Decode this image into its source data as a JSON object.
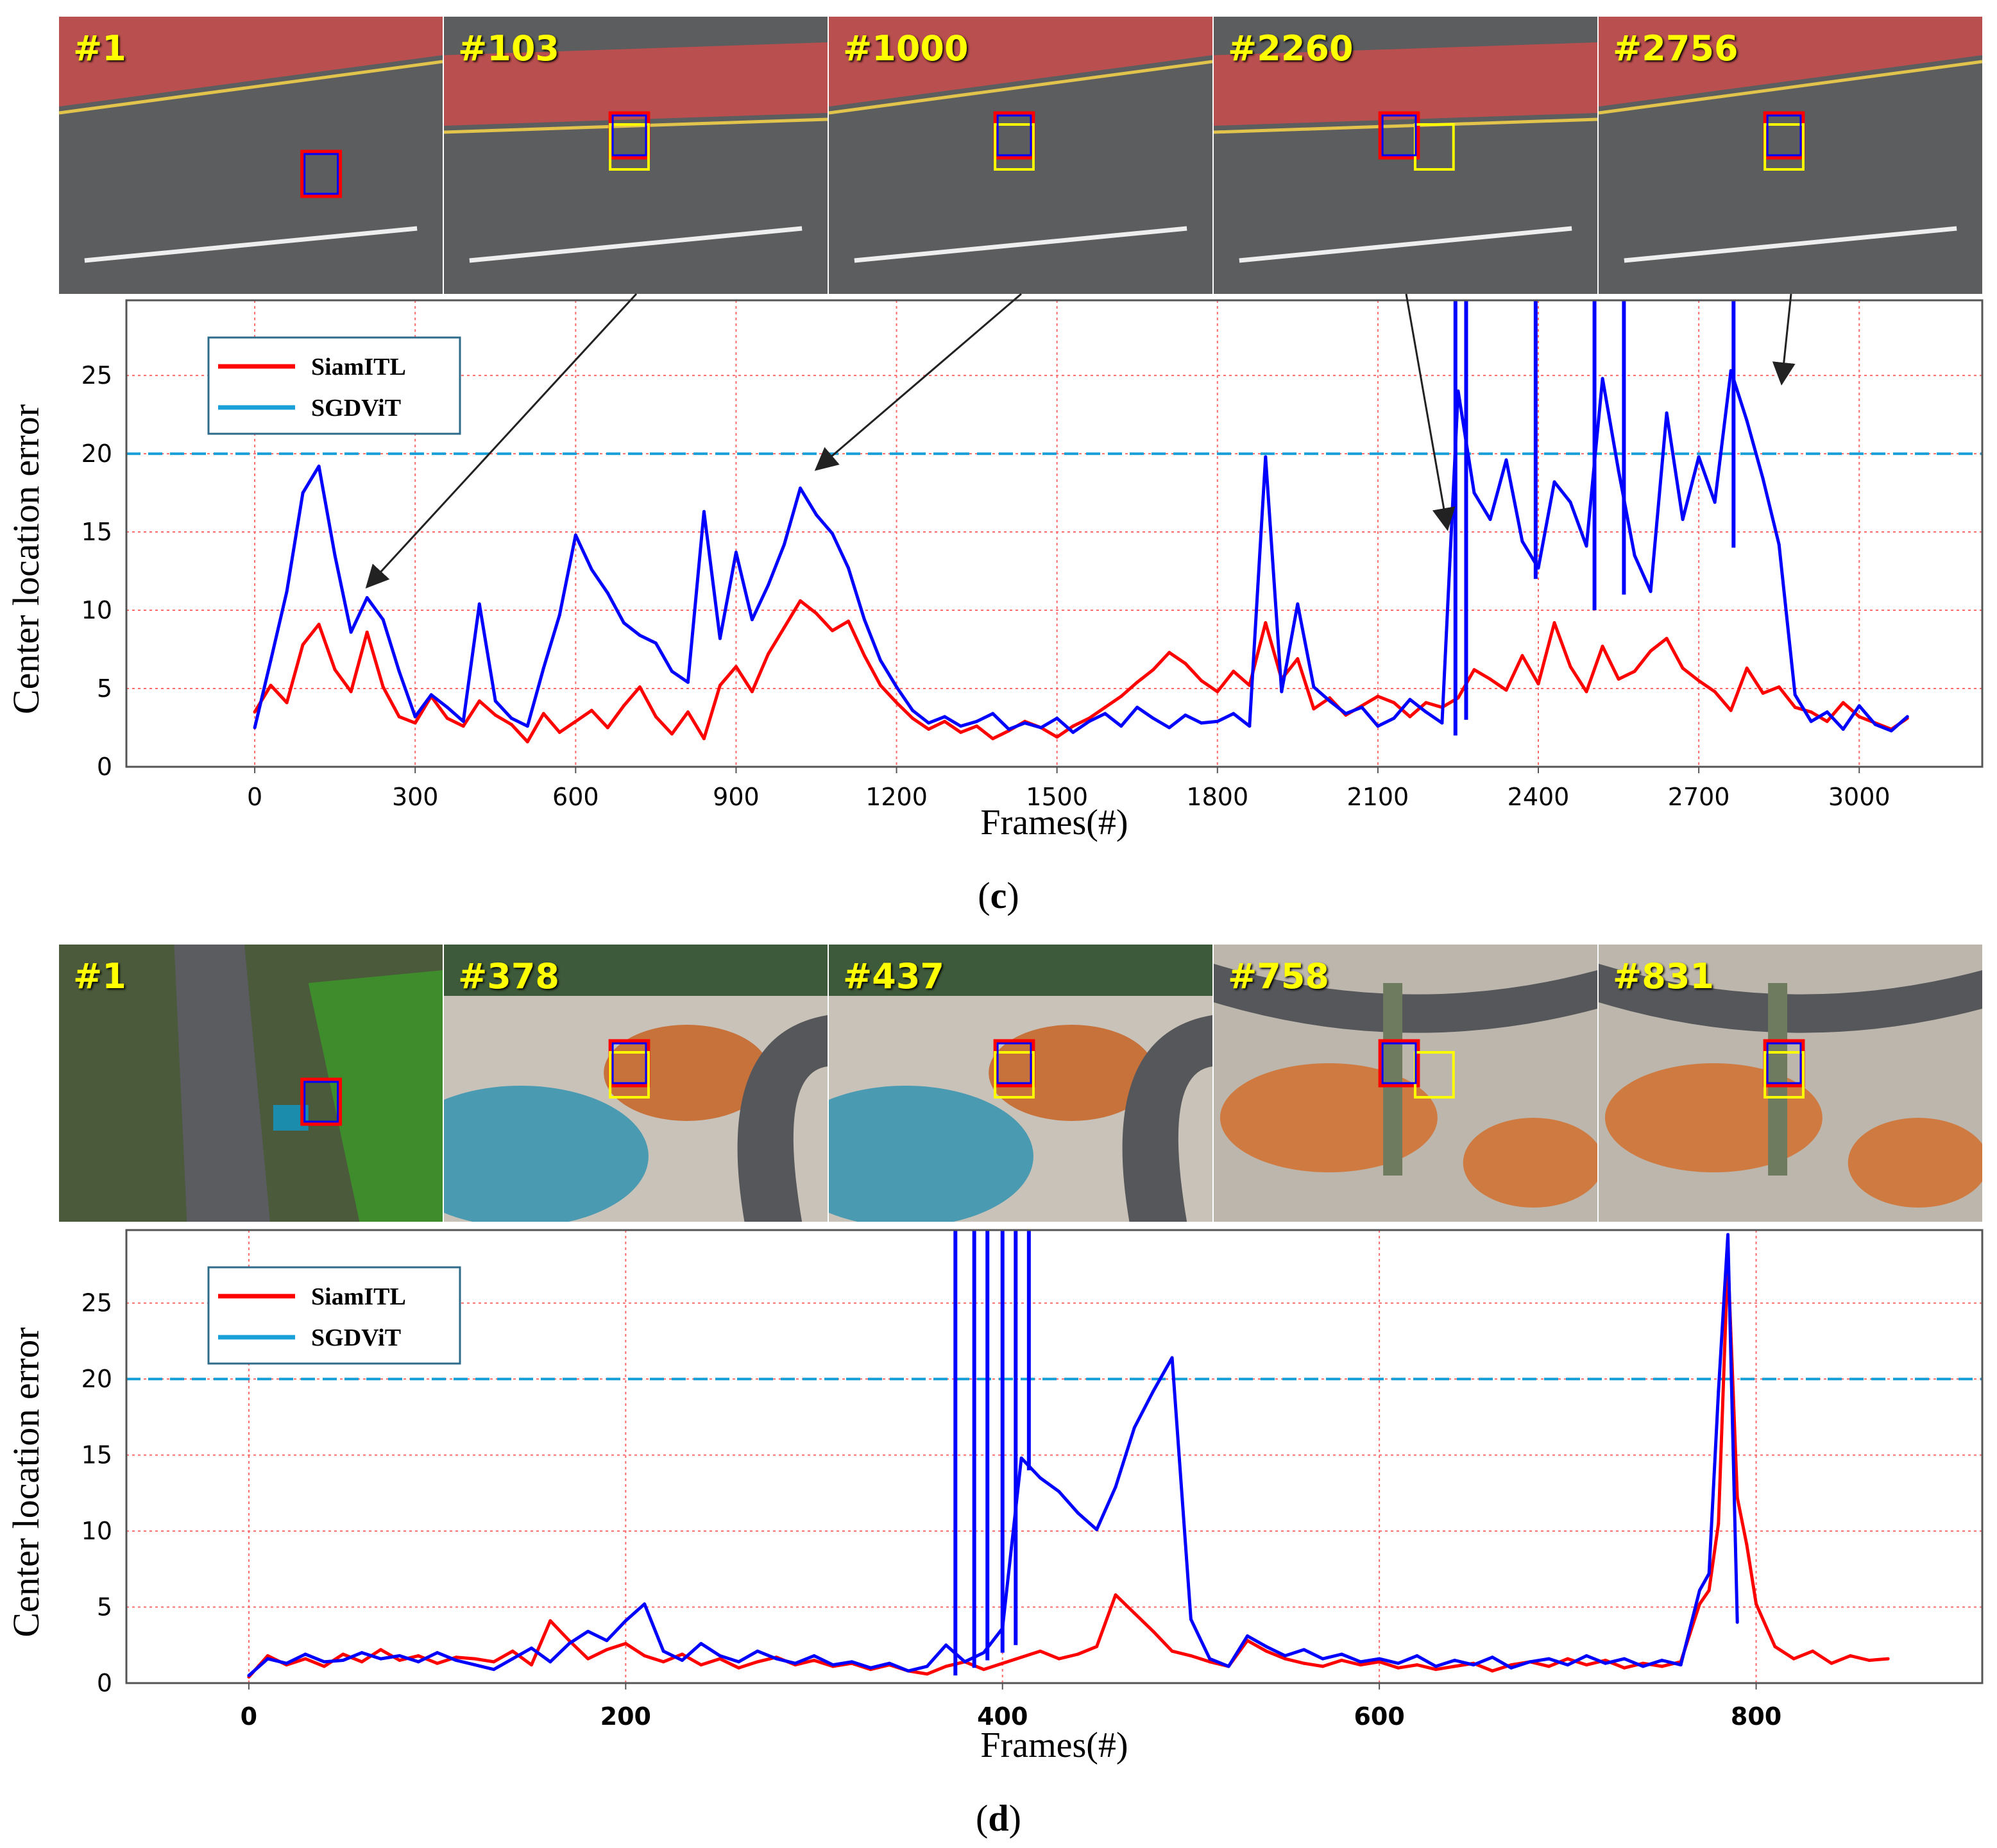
{
  "colors": {
    "siamitl": "#ff0000",
    "sgdvit": "#0000ff",
    "threshold": "#1aa0d8",
    "grid": "#ff6b6b",
    "frame_label": "#ffff00",
    "box_yellow": "#ffff00"
  },
  "panels": [
    {
      "caption_open": "(",
      "caption_letter": "c",
      "caption_close": ")",
      "frames": [
        {
          "label": "#1",
          "scene": "road"
        },
        {
          "label": "#103",
          "scene": "road"
        },
        {
          "label": "#1000",
          "scene": "road"
        },
        {
          "label": "#2260",
          "scene": "road"
        },
        {
          "label": "#2756",
          "scene": "road"
        }
      ]
    },
    {
      "caption_open": "(",
      "caption_letter": "d",
      "caption_close": ")",
      "frames": [
        {
          "label": "#1",
          "scene": "park"
        },
        {
          "label": "#378",
          "scene": "plaza"
        },
        {
          "label": "#437",
          "scene": "plaza"
        },
        {
          "label": "#758",
          "scene": "plaza2"
        },
        {
          "label": "#831",
          "scene": "plaza2"
        }
      ]
    }
  ],
  "chart_data": [
    {
      "type": "line",
      "xlabel": "Frames(#)",
      "ylabel": "Center location error",
      "xlim": [
        -240,
        3230
      ],
      "ylim": [
        0,
        29.8
      ],
      "xticks": [
        0,
        300,
        600,
        900,
        1200,
        1500,
        1800,
        2100,
        2400,
        2700,
        3000
      ],
      "yticks": [
        0,
        5,
        10,
        15,
        20,
        25
      ],
      "threshold": 20,
      "grid": true,
      "legend_position": "top-left",
      "arrows": [
        {
          "from_frame_index": 1,
          "to_x": 210,
          "to_y": 11.5
        },
        {
          "from_frame_index": 2,
          "to_x": 1050,
          "to_y": 19
        },
        {
          "from_frame_index": 3,
          "to_x": 2230,
          "to_y": 15.2
        },
        {
          "from_frame_index": 4,
          "to_x": 2855,
          "to_y": 24.5
        }
      ],
      "series": [
        {
          "name": "SiamITL",
          "color": "#ff0000",
          "x": [
            0,
            30,
            60,
            90,
            120,
            150,
            180,
            210,
            240,
            270,
            300,
            330,
            360,
            390,
            420,
            450,
            480,
            510,
            540,
            570,
            600,
            630,
            660,
            690,
            720,
            750,
            780,
            810,
            840,
            870,
            900,
            930,
            960,
            990,
            1020,
            1050,
            1080,
            1110,
            1140,
            1170,
            1200,
            1230,
            1260,
            1290,
            1320,
            1350,
            1380,
            1410,
            1440,
            1470,
            1500,
            1530,
            1560,
            1590,
            1620,
            1650,
            1680,
            1710,
            1740,
            1770,
            1800,
            1830,
            1860,
            1890,
            1920,
            1950,
            1980,
            2010,
            2040,
            2070,
            2100,
            2130,
            2160,
            2190,
            2220,
            2250,
            2280,
            2310,
            2340,
            2370,
            2400,
            2430,
            2460,
            2490,
            2520,
            2550,
            2580,
            2610,
            2640,
            2670,
            2700,
            2730,
            2760,
            2790,
            2820,
            2850,
            2880,
            2910,
            2940,
            2970,
            3000,
            3030,
            3060,
            3090
          ],
          "values": [
            3.5,
            5.2,
            4.1,
            7.8,
            9.1,
            6.2,
            4.8,
            8.6,
            5.1,
            3.2,
            2.8,
            4.5,
            3.1,
            2.6,
            4.2,
            3.3,
            2.7,
            1.6,
            3.4,
            2.2,
            2.9,
            3.6,
            2.5,
            3.9,
            5.1,
            3.2,
            2.1,
            3.5,
            1.8,
            5.2,
            6.4,
            4.8,
            7.2,
            8.9,
            10.6,
            9.8,
            8.7,
            9.3,
            7.1,
            5.2,
            4.1,
            3.1,
            2.4,
            2.9,
            2.2,
            2.6,
            1.8,
            2.3,
            2.9,
            2.5,
            1.9,
            2.6,
            3.1,
            3.8,
            4.5,
            5.4,
            6.2,
            7.3,
            6.6,
            5.5,
            4.8,
            6.1,
            5.2,
            9.2,
            5.6,
            6.9,
            3.7,
            4.4,
            3.3,
            3.9,
            4.5,
            4.1,
            3.2,
            4.1,
            3.8,
            4.4,
            6.2,
            5.6,
            4.9,
            7.1,
            5.3,
            9.2,
            6.4,
            4.8,
            7.7,
            5.6,
            6.1,
            7.4,
            8.2,
            6.3,
            5.5,
            4.8,
            3.6,
            6.3,
            4.7,
            5.1,
            3.8,
            3.5,
            2.9,
            4.1,
            3.2,
            2.8,
            2.4,
            3.1
          ]
        },
        {
          "name": "SGDViT",
          "color": "#0000ff",
          "x": [
            0,
            30,
            60,
            90,
            120,
            150,
            180,
            210,
            240,
            270,
            300,
            330,
            360,
            390,
            420,
            450,
            480,
            510,
            540,
            570,
            600,
            630,
            660,
            690,
            720,
            750,
            780,
            810,
            840,
            870,
            900,
            930,
            960,
            990,
            1020,
            1050,
            1080,
            1110,
            1140,
            1170,
            1200,
            1230,
            1260,
            1290,
            1320,
            1350,
            1380,
            1410,
            1440,
            1470,
            1500,
            1530,
            1560,
            1590,
            1620,
            1650,
            1680,
            1710,
            1740,
            1770,
            1800,
            1830,
            1860,
            1890,
            1920,
            1950,
            1980,
            2010,
            2040,
            2070,
            2100,
            2130,
            2160,
            2190,
            2220,
            2250,
            2280,
            2310,
            2340,
            2370,
            2400,
            2430,
            2460,
            2490,
            2520,
            2550,
            2580,
            2610,
            2640,
            2670,
            2700,
            2730,
            2760,
            2790,
            2820,
            2850,
            2880,
            2910,
            2940,
            2970,
            3000,
            3030,
            3060,
            3090
          ],
          "values": [
            2.5,
            6.8,
            11.2,
            17.5,
            19.2,
            13.5,
            8.6,
            10.8,
            9.4,
            6.1,
            3.2,
            4.6,
            3.8,
            2.9,
            10.4,
            4.2,
            3.1,
            2.6,
            6.3,
            9.7,
            14.8,
            12.6,
            11.1,
            9.2,
            8.4,
            7.9,
            6.1,
            5.4,
            16.3,
            8.2,
            13.7,
            9.4,
            11.6,
            14.2,
            17.8,
            16.1,
            14.9,
            12.7,
            9.4,
            6.8,
            5.1,
            3.6,
            2.8,
            3.2,
            2.6,
            2.9,
            3.4,
            2.4,
            2.8,
            2.5,
            3.1,
            2.2,
            2.9,
            3.4,
            2.6,
            3.8,
            3.1,
            2.5,
            3.3,
            2.8,
            2.9,
            3.4,
            2.6,
            19.8,
            4.8,
            10.4,
            5.1,
            4.2,
            3.4,
            3.8,
            2.6,
            3.1,
            4.3,
            3.5,
            2.8,
            24.0,
            17.5,
            15.8,
            19.6,
            14.4,
            12.7,
            18.2,
            16.9,
            14.1,
            24.8,
            18.9,
            13.5,
            11.2,
            22.6,
            15.8,
            19.8,
            16.9,
            25.3,
            22.1,
            18.4,
            14.2,
            4.6,
            2.9,
            3.5,
            2.4,
            3.9,
            2.7,
            2.3,
            3.2
          ],
          "extra_spikes": [
            {
              "x": 2245,
              "low": 2.0,
              "high": 29.8
            },
            {
              "x": 2265,
              "low": 3.0,
              "high": 29.8
            },
            {
              "x": 2395,
              "low": 12.0,
              "high": 29.8
            },
            {
              "x": 2505,
              "low": 10.0,
              "high": 29.8
            },
            {
              "x": 2560,
              "low": 11.0,
              "high": 29.8
            },
            {
              "x": 2765,
              "low": 14.0,
              "high": 29.8
            }
          ]
        }
      ]
    },
    {
      "type": "line",
      "xlabel": "Frames(#)",
      "ylabel": "Center location error",
      "xlim": [
        -65,
        920
      ],
      "ylim": [
        0,
        29.8
      ],
      "xticks": [
        0,
        200,
        400,
        600,
        800
      ],
      "yticks": [
        0,
        5,
        10,
        15,
        20,
        25
      ],
      "threshold": 20,
      "grid": true,
      "legend_position": "top-left",
      "series": [
        {
          "name": "SiamITL",
          "color": "#ff0000",
          "x": [
            0,
            10,
            20,
            30,
            40,
            50,
            60,
            70,
            80,
            90,
            100,
            110,
            120,
            130,
            140,
            150,
            160,
            170,
            180,
            190,
            200,
            210,
            220,
            230,
            240,
            250,
            260,
            270,
            280,
            290,
            300,
            310,
            320,
            330,
            340,
            350,
            360,
            370,
            380,
            390,
            400,
            410,
            420,
            430,
            440,
            450,
            460,
            470,
            480,
            490,
            500,
            510,
            520,
            530,
            540,
            550,
            560,
            570,
            580,
            590,
            600,
            610,
            620,
            630,
            640,
            650,
            660,
            670,
            680,
            690,
            700,
            710,
            720,
            730,
            740,
            750,
            760,
            770,
            775,
            780,
            785,
            790,
            795,
            800,
            810,
            820,
            830,
            840,
            850,
            860,
            870
          ],
          "values": [
            0.4,
            1.8,
            1.2,
            1.6,
            1.1,
            1.9,
            1.4,
            2.2,
            1.5,
            1.8,
            1.3,
            1.7,
            1.6,
            1.4,
            2.1,
            1.2,
            4.1,
            2.8,
            1.6,
            2.2,
            2.6,
            1.8,
            1.4,
            1.9,
            1.2,
            1.6,
            1.0,
            1.4,
            1.7,
            1.2,
            1.5,
            1.1,
            1.3,
            0.9,
            1.2,
            0.8,
            0.6,
            1.1,
            1.4,
            0.9,
            1.3,
            1.7,
            2.1,
            1.6,
            1.9,
            2.4,
            5.8,
            4.6,
            3.4,
            2.1,
            1.8,
            1.4,
            1.1,
            2.8,
            2.1,
            1.6,
            1.3,
            1.1,
            1.5,
            1.2,
            1.4,
            1.0,
            1.2,
            0.9,
            1.1,
            1.3,
            0.8,
            1.2,
            1.4,
            1.1,
            1.6,
            1.2,
            1.5,
            1.0,
            1.3,
            1.1,
            1.4,
            5.2,
            6.1,
            10.5,
            28.0,
            12.2,
            9.1,
            5.2,
            2.4,
            1.6,
            2.1,
            1.3,
            1.8,
            1.5,
            1.6
          ]
        },
        {
          "name": "SGDViT",
          "color": "#0000ff",
          "x": [
            0,
            10,
            20,
            30,
            40,
            50,
            60,
            70,
            80,
            90,
            100,
            110,
            120,
            130,
            140,
            150,
            160,
            170,
            180,
            190,
            200,
            210,
            220,
            230,
            240,
            250,
            260,
            270,
            280,
            290,
            300,
            310,
            320,
            330,
            340,
            350,
            360,
            370,
            380,
            390,
            400,
            410,
            420,
            430,
            440,
            450,
            460,
            470,
            480,
            490,
            500,
            510,
            520,
            530,
            540,
            550,
            560,
            570,
            580,
            590,
            600,
            610,
            620,
            630,
            640,
            650,
            660,
            670,
            680,
            690,
            700,
            710,
            720,
            730,
            740,
            750,
            760,
            770,
            775,
            780,
            785,
            790
          ],
          "values": [
            0.5,
            1.6,
            1.3,
            1.9,
            1.4,
            1.5,
            2.0,
            1.6,
            1.8,
            1.4,
            2.0,
            1.5,
            1.2,
            0.9,
            1.6,
            2.3,
            1.4,
            2.6,
            3.4,
            2.8,
            4.1,
            5.2,
            2.1,
            1.5,
            2.6,
            1.8,
            1.4,
            2.1,
            1.6,
            1.3,
            1.8,
            1.2,
            1.4,
            1.0,
            1.3,
            0.8,
            1.1,
            2.5,
            1.4,
            2.0,
            3.6,
            14.8,
            13.5,
            12.6,
            11.2,
            10.1,
            12.9,
            16.8,
            19.2,
            21.4,
            4.2,
            1.6,
            1.1,
            3.1,
            2.4,
            1.8,
            2.2,
            1.6,
            1.9,
            1.4,
            1.6,
            1.3,
            1.8,
            1.1,
            1.5,
            1.2,
            1.7,
            1.0,
            1.4,
            1.6,
            1.2,
            1.8,
            1.3,
            1.6,
            1.1,
            1.5,
            1.2,
            6.1,
            7.2,
            19.2,
            29.5,
            4.0
          ],
          "extra_spikes": [
            {
              "x": 375,
              "low": 0.5,
              "high": 29.8
            },
            {
              "x": 385,
              "low": 1.0,
              "high": 29.8
            },
            {
              "x": 392,
              "low": 1.5,
              "high": 29.8
            },
            {
              "x": 400,
              "low": 2.0,
              "high": 29.8
            },
            {
              "x": 407,
              "low": 2.5,
              "high": 29.8
            },
            {
              "x": 414,
              "low": 14.0,
              "high": 29.8
            }
          ]
        }
      ]
    }
  ]
}
